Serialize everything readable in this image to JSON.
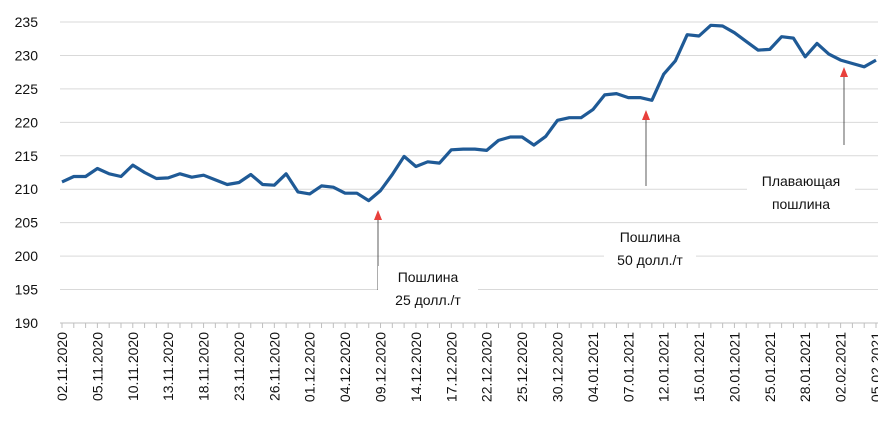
{
  "chart_data": {
    "type": "line",
    "categories": [
      "02.11.2020",
      null,
      null,
      "05.11.2020",
      null,
      null,
      "10.11.2020",
      null,
      null,
      "13.11.2020",
      null,
      null,
      "18.11.2020",
      null,
      null,
      "23.11.2020",
      null,
      null,
      "26.11.2020",
      null,
      null,
      "01.12.2020",
      null,
      null,
      "04.12.2020",
      null,
      null,
      "09.12.2020",
      null,
      null,
      "14.12.2020",
      null,
      null,
      "17.12.2020",
      null,
      null,
      "22.12.2020",
      null,
      null,
      "25.12.2020",
      null,
      null,
      "30.12.2020",
      null,
      null,
      "04.01.2021",
      null,
      null,
      "07.01.2021",
      null,
      null,
      "12.01.2021",
      null,
      null,
      "15.01.2021",
      null,
      null,
      "20.01.2021",
      null,
      null,
      "25.01.2021",
      null,
      null,
      "28.01.2021",
      null,
      null,
      "02.02.2021",
      null,
      null,
      "05.02.2021"
    ],
    "series": [
      {
        "color": "#1f5a96",
        "values": [
          211.1,
          211.9,
          211.9,
          213.1,
          212.3,
          211.9,
          213.6,
          212.5,
          211.6,
          211.7,
          212.3,
          211.8,
          212.1,
          211.4,
          210.7,
          211.0,
          212.2,
          210.7,
          210.6,
          212.3,
          209.6,
          209.3,
          210.5,
          210.3,
          209.4,
          209.4,
          208.3,
          209.8,
          212.2,
          214.9,
          213.4,
          214.1,
          213.9,
          215.9,
          216.0,
          216.0,
          215.8,
          217.3,
          217.8,
          217.8,
          216.6,
          217.9,
          220.3,
          220.7,
          220.7,
          221.9,
          224.1,
          224.3,
          223.7,
          223.7,
          223.3,
          227.2,
          229.2,
          233.1,
          232.9,
          234.5,
          234.4,
          233.4,
          232.1,
          230.8,
          230.9,
          232.8,
          232.6,
          229.8,
          231.8,
          230.2,
          229.3,
          228.8,
          228.3,
          229.3
        ]
      }
    ],
    "ylim": [
      190,
      235
    ],
    "yticks": [
      190,
      195,
      200,
      205,
      210,
      215,
      220,
      225,
      230,
      235
    ],
    "grid": true,
    "annotations": [
      [
        "Пошлина",
        "25 долл./т"
      ],
      [
        "Пошлина",
        "50 долл./т"
      ],
      [
        "Плавающая",
        "пошлина"
      ]
    ],
    "arrow_color": "#e8403c"
  }
}
